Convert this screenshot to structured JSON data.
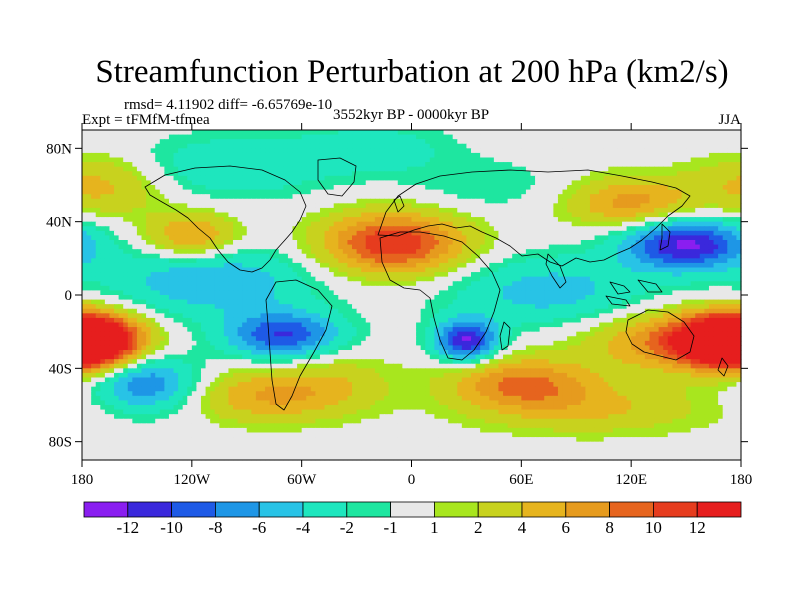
{
  "chart_data": {
    "type": "heatmap",
    "title": "Streamfunction Perturbation at 200 hPa (km2/s)",
    "rmsd_label": "rmsd= 4.11902 diff= -6.65769e-10",
    "expt_label": "Expt = tFMfM-tfmea",
    "period_label": "3552kyr BP - 0000kyr BP",
    "season_label": "JJA",
    "x_ticks": [
      {
        "lon": -180,
        "label": "180"
      },
      {
        "lon": -120,
        "label": "120W"
      },
      {
        "lon": -60,
        "label": "60W"
      },
      {
        "lon": 0,
        "label": "0"
      },
      {
        "lon": 60,
        "label": "60E"
      },
      {
        "lon": 120,
        "label": "120E"
      },
      {
        "lon": 180,
        "label": "180"
      }
    ],
    "y_ticks": [
      {
        "lat": 80,
        "label": "80N"
      },
      {
        "lat": 40,
        "label": "40N"
      },
      {
        "lat": 0,
        "label": "0"
      },
      {
        "lat": -40,
        "label": "40S"
      },
      {
        "lat": -80,
        "label": "80S"
      }
    ],
    "xlim": [
      -180,
      180
    ],
    "ylim": [
      -90,
      90
    ],
    "levels": [
      -12,
      -10,
      -8,
      -6,
      -4,
      -2,
      -1,
      1,
      2,
      4,
      6,
      8,
      10,
      12
    ],
    "level_labels": [
      "-12",
      "-10",
      "-8",
      "-6",
      "-4",
      "-2",
      "-1",
      "1",
      "2",
      "4",
      "6",
      "8",
      "10",
      "12"
    ],
    "colors": [
      "#8a1ef0",
      "#3a28dc",
      "#1e5ae6",
      "#1e96e6",
      "#28c3e6",
      "#1ee6be",
      "#1ee6a0",
      "#e8e8e8",
      "#a8e61e",
      "#c8d21e",
      "#e6b41e",
      "#e69b1e",
      "#e6641e",
      "#e63c1e",
      "#e61e1e"
    ],
    "field_centers": [
      {
        "lon": 150,
        "lat": 28,
        "value": -12.5,
        "lon_width": 24,
        "lat_width": 10
      },
      {
        "lon": 30,
        "lat": -25,
        "value": -12,
        "lon_width": 12,
        "lat_width": 8
      },
      {
        "lon": -70,
        "lat": -22,
        "value": -10,
        "lon_width": 22,
        "lat_width": 9
      },
      {
        "lon": -145,
        "lat": -48,
        "value": -8,
        "lon_width": 20,
        "lat_width": 11
      },
      {
        "lon": -110,
        "lat": 8,
        "value": -6,
        "lon_width": 40,
        "lat_width": 14
      },
      {
        "lon": 75,
        "lat": 2,
        "value": -5,
        "lon_width": 40,
        "lat_width": 14
      },
      {
        "lon": -100,
        "lat": 70,
        "value": -4,
        "lon_width": 40,
        "lat_width": 12
      },
      {
        "lon": -10,
        "lat": 28,
        "value": 12,
        "lon_width": 28,
        "lat_width": 12
      },
      {
        "lon": -120,
        "lat": 32,
        "value": 7,
        "lon_width": 18,
        "lat_width": 9
      },
      {
        "lon": 150,
        "lat": -25,
        "value": 9,
        "lon_width": 35,
        "lat_width": 11
      },
      {
        "lon": -180,
        "lat": -25,
        "value": 12,
        "lon_width": 20,
        "lat_width": 10
      },
      {
        "lon": 180,
        "lat": -25,
        "value": 12,
        "lon_width": 20,
        "lat_width": 10
      },
      {
        "lon": 120,
        "lat": 50,
        "value": 7,
        "lon_width": 24,
        "lat_width": 10
      },
      {
        "lon": -80,
        "lat": -55,
        "value": 6,
        "lon_width": 28,
        "lat_width": 10
      },
      {
        "lon": 60,
        "lat": -48,
        "value": 8,
        "lon_width": 28,
        "lat_width": 10
      },
      {
        "lon": -170,
        "lat": 60,
        "value": 5,
        "lon_width": 26,
        "lat_width": 12
      },
      {
        "lon": -40,
        "lat": -48,
        "value": 3,
        "lon_width": 22,
        "lat_width": 12
      },
      {
        "lon": 100,
        "lat": -62,
        "value": 4,
        "lon_width": 45,
        "lat_width": 10
      },
      {
        "lon": -20,
        "lat": 80,
        "value": -3,
        "lon_width": 30,
        "lat_width": 10
      },
      {
        "lon": 40,
        "lat": 60,
        "value": -2,
        "lon_width": 30,
        "lat_width": 10
      }
    ]
  }
}
